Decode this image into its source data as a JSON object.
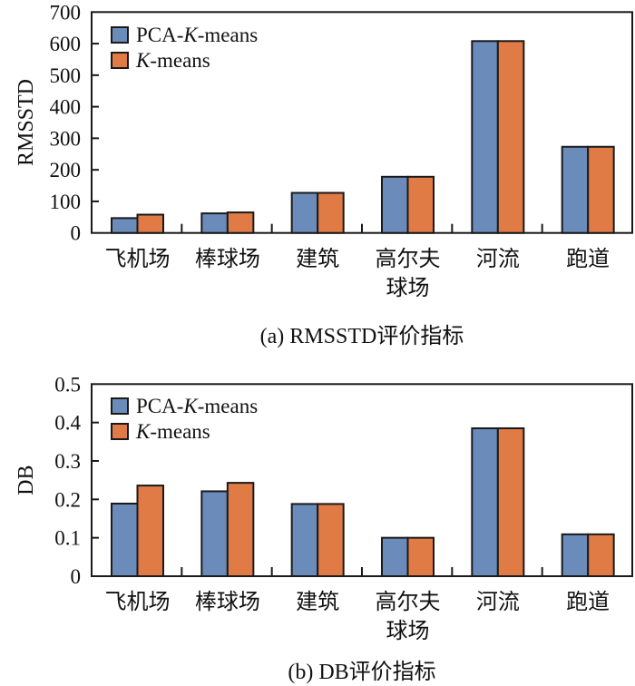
{
  "chart_data": [
    {
      "type": "bar",
      "id": "rmsstd",
      "title": "",
      "caption": "(a) RMSSTD评价指标",
      "xlabel": "",
      "ylabel": "RMSSTD",
      "ylim": [
        0,
        700
      ],
      "yticks": [
        0,
        100,
        200,
        300,
        400,
        500,
        600,
        700
      ],
      "ytick_labels": [
        "0",
        "100",
        "200",
        "300",
        "400",
        "500",
        "600",
        "700"
      ],
      "categories": [
        [
          "飞机场"
        ],
        [
          "棒球场"
        ],
        [
          "建筑"
        ],
        [
          "高尔夫",
          "球场"
        ],
        [
          "河流"
        ],
        [
          "跑道"
        ]
      ],
      "series": [
        {
          "name": "PCA-K-means",
          "legend_prefix": "PCA-",
          "legend_italic": "K",
          "legend_suffix": "-means",
          "color": "#6b8cba",
          "values": [
            47,
            62,
            127,
            178,
            608,
            273
          ]
        },
        {
          "name": "K-means",
          "legend_prefix": "",
          "legend_italic": "K",
          "legend_suffix": "-means",
          "color": "#e07b45",
          "values": [
            58,
            65,
            127,
            178,
            608,
            273
          ]
        }
      ],
      "legend_position": "top-left",
      "grid": false
    },
    {
      "type": "bar",
      "id": "db",
      "title": "",
      "caption": "(b) DB评价指标",
      "xlabel": "",
      "ylabel": "DB",
      "ylim": [
        0,
        0.5
      ],
      "yticks": [
        0,
        0.1,
        0.2,
        0.3,
        0.4,
        0.5
      ],
      "ytick_labels": [
        "0",
        "0.1",
        "0.2",
        "0.3",
        "0.4",
        "0.5"
      ],
      "categories": [
        [
          "飞机场"
        ],
        [
          "棒球场"
        ],
        [
          "建筑"
        ],
        [
          "高尔夫",
          "球场"
        ],
        [
          "河流"
        ],
        [
          "跑道"
        ]
      ],
      "series": [
        {
          "name": "PCA-K-means",
          "legend_prefix": "PCA-",
          "legend_italic": "K",
          "legend_suffix": "-means",
          "color": "#6b8cba",
          "values": [
            0.189,
            0.221,
            0.188,
            0.1,
            0.385,
            0.109
          ]
        },
        {
          "name": "K-means",
          "legend_prefix": "",
          "legend_italic": "K",
          "legend_suffix": "-means",
          "color": "#e07b45",
          "values": [
            0.236,
            0.243,
            0.188,
            0.1,
            0.385,
            0.109
          ]
        }
      ],
      "legend_position": "top-left",
      "grid": false
    }
  ]
}
